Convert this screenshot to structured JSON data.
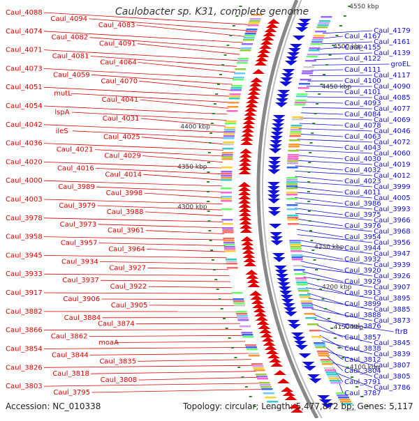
{
  "title": "Caulobacter sp. K31, complete genome",
  "footer": {
    "accession": "Accession: NC_010338",
    "topology": "Topology: circular; Length: 5,477,872 bp; Genes: 5,117"
  },
  "colors": {
    "forward": "#e00000",
    "reverse": "#1010e0",
    "backbone": "#888888",
    "tick_dot": "#2a8a2a"
  },
  "scale_labels": [
    {
      "text": "4550 kbp",
      "side": "right"
    },
    {
      "text": "4500 kbp",
      "side": "right"
    },
    {
      "text": "4450 kbp",
      "side": "right"
    },
    {
      "text": "4400 kbp",
      "side": "left"
    },
    {
      "text": "4350 kbp",
      "side": "left"
    },
    {
      "text": "4300 kbp",
      "side": "left"
    },
    {
      "text": "4250 kbp",
      "side": "right"
    },
    {
      "text": "4200 kbp",
      "side": "right"
    },
    {
      "text": "4150 kbp",
      "side": "right"
    },
    {
      "text": "4100 kbp",
      "side": "right"
    }
  ],
  "left_labels": [
    "Caul_4088",
    "Caul_4094",
    "Caul_4083",
    "Caul_4074",
    "Caul_4082",
    "Caul_4091",
    "Caul_4071",
    "Caul_4081",
    "Caul_4064",
    "Caul_4073",
    "Caul_4059",
    "Caul_4070",
    "Caul_4051",
    "mutL",
    "Caul_4041",
    "Caul_4054",
    "lspA",
    "Caul_4031",
    "Caul_4042",
    "ileS",
    "Caul_4025",
    "Caul_4036",
    "Caul_4021",
    "Caul_4029",
    "Caul_4020",
    "Caul_4016",
    "Caul_4014",
    "Caul_4000",
    "Caul_3989",
    "Caul_3998",
    "Caul_4003",
    "Caul_3979",
    "Caul_3988",
    "Caul_3978",
    "Caul_3973",
    "Caul_3961",
    "Caul_3958",
    "Caul_3957",
    "Caul_3964",
    "Caul_3945",
    "Caul_3934",
    "Caul_3927",
    "Caul_3933",
    "Caul_3937",
    "Caul_3922",
    "Caul_3917",
    "Caul_3906",
    "Caul_3905",
    "Caul_3882",
    "Caul_3884",
    "Caul_3874",
    "Caul_3866",
    "Caul_3862",
    "moaA",
    "Caul_3854",
    "Caul_3844",
    "Caul_3835",
    "Caul_3826",
    "Caul_3818",
    "Caul_3808",
    "Caul_3803",
    "Caul_3795"
  ],
  "right_labels": [
    "Caul_4179",
    "Caul_4167",
    "Caul_4161",
    "Caul_4155",
    "Caul_4139",
    "Caul_4122",
    "groEL",
    "Caul_4111",
    "Caul_4117",
    "Caul_4100",
    "Caul_4090",
    "Caul_4101",
    "Caul_4085",
    "Caul_4093",
    "Caul_4077",
    "Caul_4084",
    "Caul_4069",
    "Caul_4078",
    "Caul_4046",
    "Caul_4063",
    "Caul_4072",
    "Caul_4043",
    "Caul_4060",
    "Caul_4030",
    "Caul_4019",
    "Caul_4032",
    "Caul_4012",
    "Caul_4023",
    "Caul_3999",
    "Caul_4011",
    "Caul_4005",
    "Caul_3986",
    "Caul_3993",
    "Caul_3975",
    "Caul_3966",
    "Caul_3976",
    "Caul_3968",
    "Caul_3954",
    "Caul_3956",
    "Caul_3944",
    "Caul_3947",
    "Caul_3932",
    "Caul_3939",
    "Caul_3920",
    "Caul_3926",
    "Caul_3929",
    "Caul_3907",
    "Caul_3913",
    "Caul_3895",
    "Caul_3899",
    "Caul_3885",
    "Caul_3888",
    "Caul_3873",
    "Caul_3876",
    "ftrB",
    "Caul_3857",
    "Caul_3845",
    "Caul_3838",
    "Caul_3839",
    "Caul_3812",
    "Caul_3807",
    "Caul_3804",
    "Caul_3805",
    "Caul_3791",
    "Caul_3786",
    "Caul_3787"
  ]
}
